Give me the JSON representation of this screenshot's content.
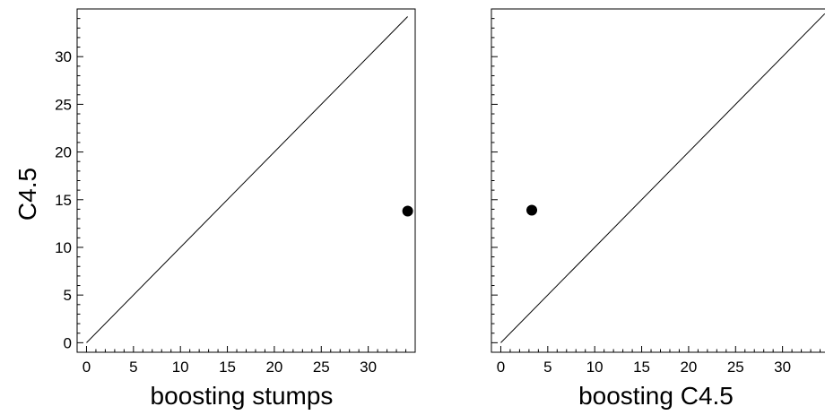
{
  "chart_data": [
    {
      "type": "scatter",
      "title": "",
      "xlabel": "boosting stumps",
      "ylabel": "C4.5",
      "xlim": [
        -1,
        35
      ],
      "ylim": [
        -1,
        35
      ],
      "xticks": [
        0,
        5,
        10,
        15,
        20,
        25,
        30
      ],
      "yticks": [
        0,
        5,
        10,
        15,
        20,
        25,
        30
      ],
      "grid": false,
      "reference_line": {
        "from": [
          0,
          0
        ],
        "to": [
          34.2,
          34.2
        ]
      },
      "points": [
        {
          "x": 34.2,
          "y": 13.8
        }
      ],
      "point_color": "#000000",
      "line_color": "#000000"
    },
    {
      "type": "scatter",
      "title": "",
      "xlabel": "boosting C4.5",
      "ylabel": "",
      "xlim": [
        -1,
        35
      ],
      "ylim": [
        -1,
        35
      ],
      "xticks": [
        0,
        5,
        10,
        15,
        20,
        25,
        30
      ],
      "yticks": [],
      "grid": false,
      "reference_line": {
        "from": [
          0,
          0
        ],
        "to": [
          34.5,
          34.5
        ]
      },
      "points": [
        {
          "x": 3.3,
          "y": 13.9
        }
      ],
      "point_color": "#000000",
      "line_color": "#000000"
    }
  ]
}
